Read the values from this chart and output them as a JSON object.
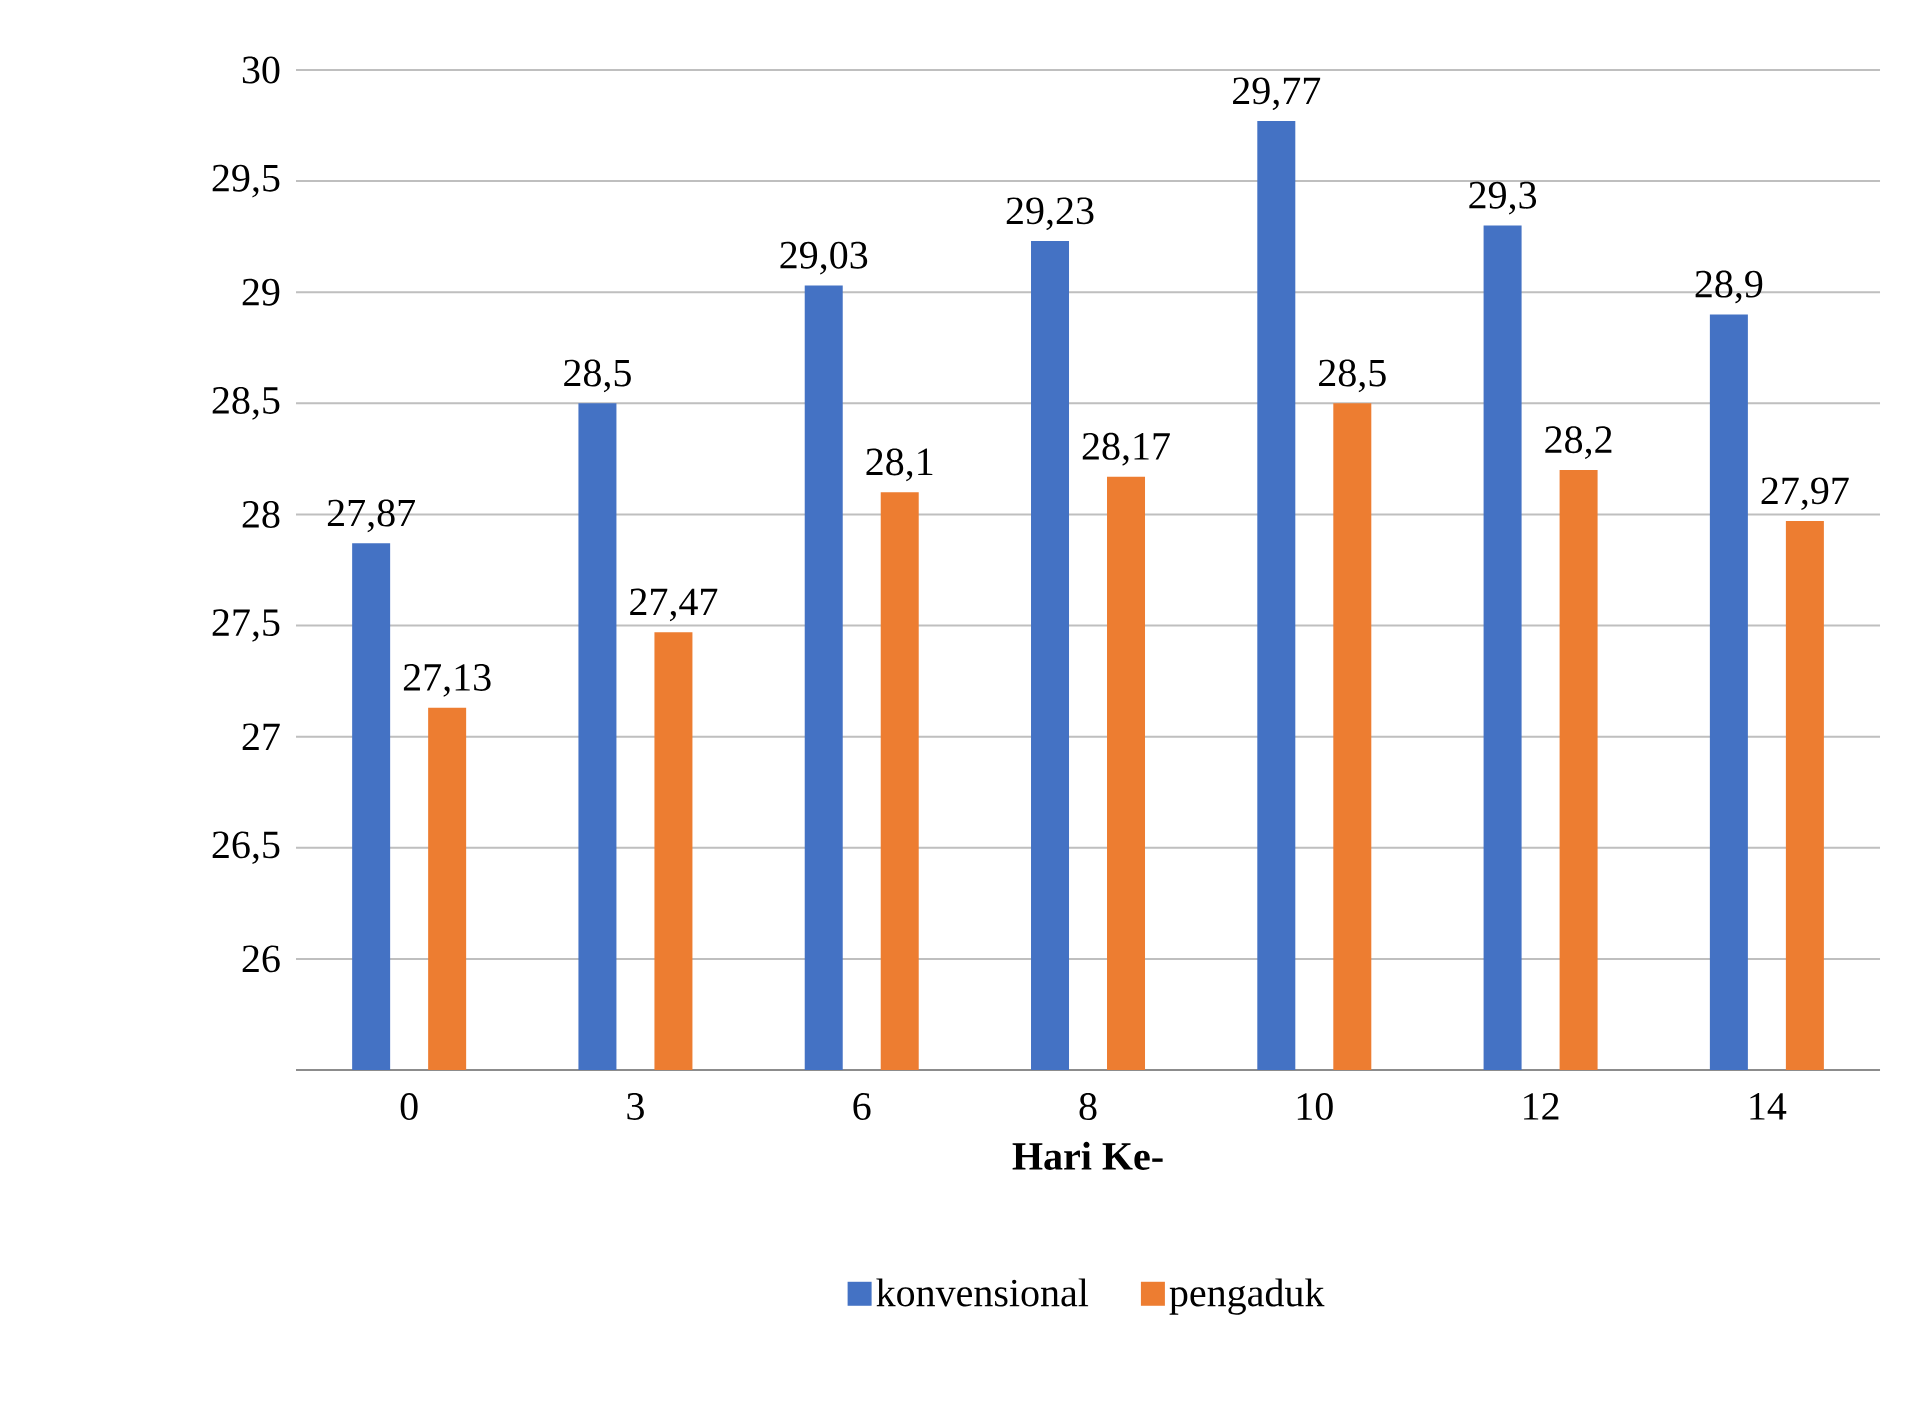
{
  "chart_data": {
    "type": "bar",
    "xlabel": "Hari Ke-",
    "categories": [
      "0",
      "3",
      "6",
      "8",
      "10",
      "12",
      "14"
    ],
    "series": [
      {
        "name": "konvensional",
        "color": "#4472c4",
        "values": [
          27.87,
          28.5,
          29.03,
          29.23,
          29.77,
          29.3,
          28.9
        ],
        "value_labels": [
          "27,87",
          "28,5",
          "29,03",
          "29,23",
          "29,77",
          "29,3",
          "28,9"
        ]
      },
      {
        "name": "pengaduk",
        "color": "#ed7d31",
        "values": [
          27.13,
          27.47,
          28.1,
          28.17,
          28.5,
          28.2,
          27.97
        ],
        "value_labels": [
          "27,13",
          "27,47",
          "28,1",
          "28,17",
          "28,5",
          "28,2",
          "27,97"
        ]
      }
    ],
    "ylim": [
      25.5,
      30
    ],
    "yticks": [
      26,
      {
        "value": 26.5,
        "label": "26,5"
      },
      27,
      {
        "value": 27.5,
        "label": "27,5"
      },
      28,
      {
        "value": 28.5,
        "label": "28,5"
      },
      29,
      {
        "value": 29.5,
        "label": "29,5"
      },
      30
    ],
    "grid": "y",
    "legend": "bottom"
  }
}
